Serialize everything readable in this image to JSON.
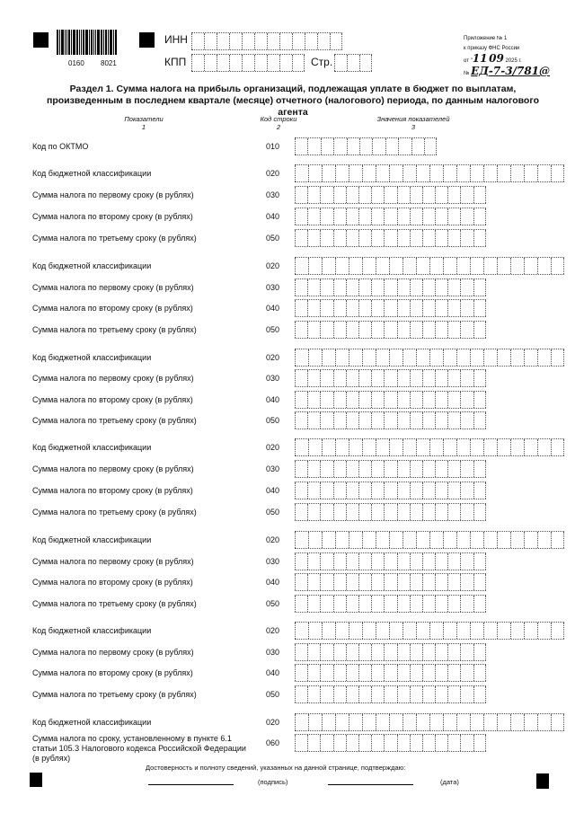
{
  "header": {
    "barcode_number_left": "0160",
    "barcode_number_right": "8021",
    "inn_label": "ИНН",
    "kpp_label": "КПП",
    "page_label": "Стр.",
    "appendix": {
      "line1": "Приложение № 1",
      "line2": "к приказу ФНС России",
      "date_prefix": "от \"",
      "day": "11",
      "month": "09",
      "year": "2025 г.",
      "number_prefix": "№",
      "number": "ЕД-7-3/781@"
    }
  },
  "section": {
    "title": "Раздел 1. Сумма налога на прибыль организаций, подлежащая уплате в бюджет по выплатам, произведенным в последнем квартале (месяце) отчетного (налогового) периода, по данным налогового агента",
    "col_headers": [
      {
        "name": "Показатели",
        "num": "1"
      },
      {
        "name": "Код строки",
        "num": "2"
      },
      {
        "name": "Значения показателей",
        "num": "3"
      }
    ]
  },
  "rows": [
    {
      "label": "Код по ОКТМО",
      "code": "010",
      "cells": 11
    },
    {
      "label": "Код бюджетной классификации",
      "code": "020",
      "cells": 20
    },
    {
      "label": "Сумма налога по первому сроку (в рублях)",
      "code": "030",
      "cells": 15
    },
    {
      "label": "Сумма налога по второму сроку (в рублях)",
      "code": "040",
      "cells": 15
    },
    {
      "label": "Сумма налога по третьему сроку (в рублях)",
      "code": "050",
      "cells": 15
    },
    {
      "label": "Код бюджетной классификации",
      "code": "020",
      "cells": 20
    },
    {
      "label": "Сумма налога по первому сроку (в рублях)",
      "code": "030",
      "cells": 15
    },
    {
      "label": "Сумма налога по второму сроку (в рублях)",
      "code": "040",
      "cells": 15
    },
    {
      "label": "Сумма налога по третьему сроку (в рублях)",
      "code": "050",
      "cells": 15
    },
    {
      "label": "Код бюджетной классификации",
      "code": "020",
      "cells": 20
    },
    {
      "label": "Сумма налога по первому сроку (в рублях)",
      "code": "030",
      "cells": 15
    },
    {
      "label": "Сумма налога по второму сроку (в рублях)",
      "code": "040",
      "cells": 15
    },
    {
      "label": "Сумма налога по третьему сроку (в рублях)",
      "code": "050",
      "cells": 15
    },
    {
      "label": "Код бюджетной классификации",
      "code": "020",
      "cells": 20
    },
    {
      "label": "Сумма налога по первому сроку (в рублях)",
      "code": "030",
      "cells": 15
    },
    {
      "label": "Сумма налога по второму сроку (в рублях)",
      "code": "040",
      "cells": 15
    },
    {
      "label": "Сумма налога по третьему сроку (в рублях)",
      "code": "050",
      "cells": 15
    },
    {
      "label": "Код бюджетной классификации",
      "code": "020",
      "cells": 20
    },
    {
      "label": "Сумма налога по первому сроку (в рублях)",
      "code": "030",
      "cells": 15
    },
    {
      "label": "Сумма налога по второму сроку (в рублях)",
      "code": "040",
      "cells": 15
    },
    {
      "label": "Сумма налога по третьему сроку (в рублях)",
      "code": "050",
      "cells": 15
    },
    {
      "label": "Код бюджетной классификации",
      "code": "020",
      "cells": 20
    },
    {
      "label": "Сумма налога по первому сроку (в рублях)",
      "code": "030",
      "cells": 15
    },
    {
      "label": "Сумма налога по второму сроку (в рублях)",
      "code": "040",
      "cells": 15
    },
    {
      "label": "Сумма налога по третьему сроку (в рублях)",
      "code": "050",
      "cells": 15
    },
    {
      "label": "Код бюджетной классификации",
      "code": "020",
      "cells": 20
    },
    {
      "label": "Сумма налога по сроку, установленному в пункте 6.1 статьи 105.3 Налогового кодекса Российской Федерации (в рублях)",
      "code": "060",
      "cells": 15
    }
  ],
  "footer": {
    "confirm": "Достоверность и полноту сведений, указанных на данной странице, подтверждаю:",
    "signature": "(подпись)",
    "date": "(дата)"
  }
}
